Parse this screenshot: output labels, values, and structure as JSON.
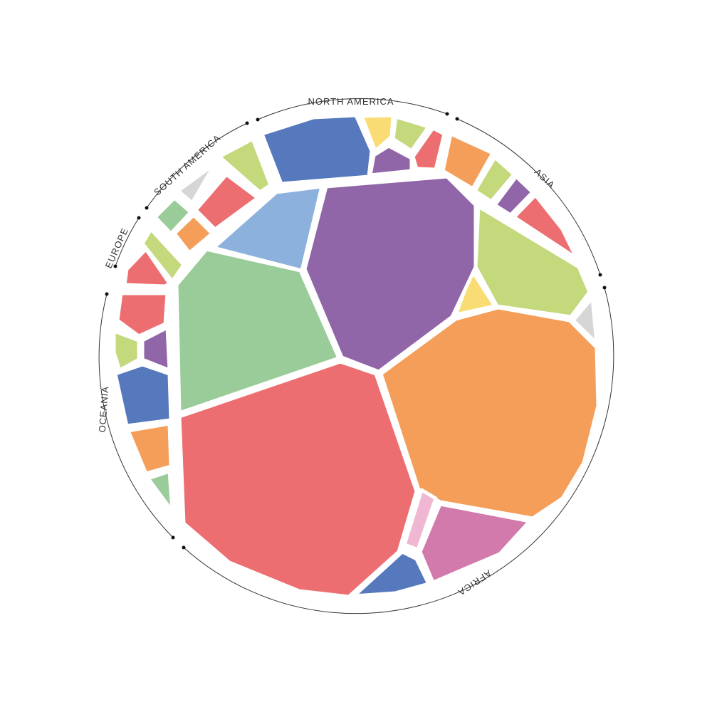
{
  "colors": {
    "red": "#ED6E70",
    "orange": "#F49E5A",
    "green": "#99CC98",
    "purple": "#9066A9",
    "lightblue": "#8DB1DD",
    "blue": "#5678BC",
    "lime": "#C4D87C",
    "yellow": "#F9DC73",
    "pink": "#D27AAB",
    "lightpink": "#EFB7D2",
    "gray": "#D6D6D6",
    "background": "#FFFFFF",
    "ring": "#333333"
  },
  "chart_data": {
    "type": "voronoi-treemap",
    "title": "",
    "regions": [
      {
        "name": "NORTH AMERICA",
        "cell_colors": [
          "blue",
          "yellow",
          "lime",
          "purple",
          "red"
        ]
      },
      {
        "name": "ASIA",
        "cell_colors": [
          "orange",
          "lime",
          "purple",
          "red",
          "lime",
          "yellow",
          "gray"
        ]
      },
      {
        "name": "AFRICA",
        "cell_colors": [
          "red",
          "orange",
          "purple",
          "green",
          "lightblue",
          "lightpink",
          "pink",
          "blue"
        ]
      },
      {
        "name": "OCEANIA",
        "cell_colors": [
          "red",
          "purple",
          "lime",
          "blue",
          "orange",
          "green"
        ]
      },
      {
        "name": "EUROPE",
        "cell_colors": [
          "red",
          "lime"
        ]
      },
      {
        "name": "SOUTH AMERICA",
        "cell_colors": [
          "gray",
          "lime",
          "red",
          "green",
          "orange"
        ]
      }
    ]
  }
}
